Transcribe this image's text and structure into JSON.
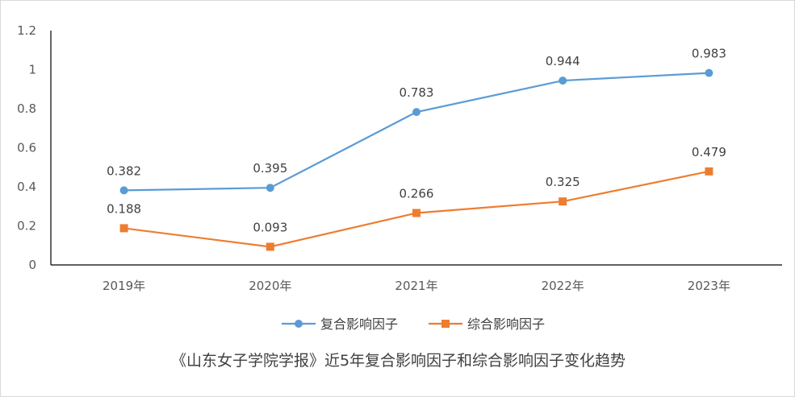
{
  "caption": "《山东女子学院学报》近5年复合影响因子和综合影响因子变化趋势",
  "chart_data": {
    "type": "line",
    "categories": [
      "2019年",
      "2020年",
      "2021年",
      "2022年",
      "2023年"
    ],
    "ylim": [
      0,
      1.2
    ],
    "yticks": [
      "0",
      "0.2",
      "0.4",
      "0.6",
      "0.8",
      "1",
      "1.2"
    ],
    "grid": false,
    "legend_position": "bottom",
    "series": [
      {
        "name": "复合影响因子",
        "marker": "circle",
        "color": "#5b9bd5",
        "values": [
          0.382,
          0.395,
          0.783,
          0.944,
          0.983
        ],
        "labels": [
          "0.382",
          "0.395",
          "0.783",
          "0.944",
          "0.983"
        ]
      },
      {
        "name": "综合影响因子",
        "marker": "square",
        "color": "#ed7d31",
        "values": [
          0.188,
          0.093,
          0.266,
          0.325,
          0.479
        ],
        "labels": [
          "0.188",
          "0.093",
          "0.266",
          "0.325",
          "0.479"
        ]
      }
    ]
  }
}
